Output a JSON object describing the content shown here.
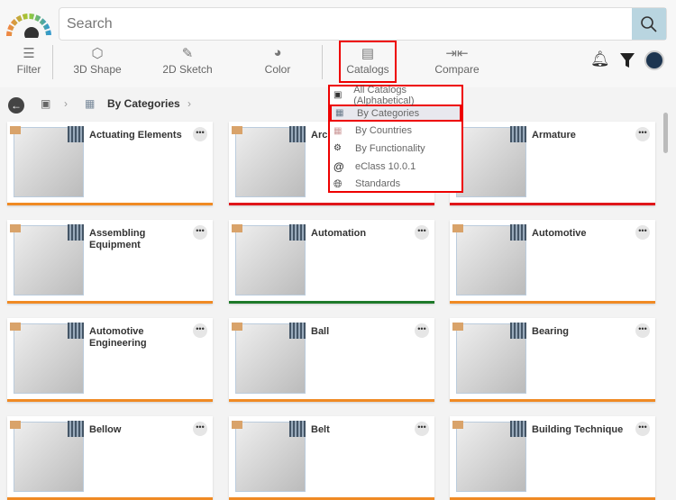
{
  "search": {
    "placeholder": "Search"
  },
  "toolbar": [
    {
      "label": "Filter",
      "icon": "sliders-icon"
    },
    {
      "label": "3D Shape",
      "icon": "cube-icon"
    },
    {
      "label": "2D Sketch",
      "icon": "pencil-icon"
    },
    {
      "label": "Color",
      "icon": "palette-icon"
    },
    {
      "label": "Catalogs",
      "icon": "catalog-icon"
    },
    {
      "label": "Compare",
      "icon": "compare-icon"
    }
  ],
  "breadcrumb": {
    "current": "By Categories"
  },
  "catalogs_menu": [
    "All Catalogs (Alphabetical)",
    "By Categories",
    "By Countries",
    "By Functionality",
    "eClass 10.0.1",
    "Standards"
  ],
  "selected_menu_item": "By Categories",
  "cards": [
    {
      "title": "Actuating Elements",
      "color": "#f08a24"
    },
    {
      "title": "Arch",
      "color": "#e0161a"
    },
    {
      "title": "Armature",
      "color": "#e0161a"
    },
    {
      "title": "Assembling Equipment",
      "color": "#f08a24"
    },
    {
      "title": "Automation",
      "color": "#1e7a2a"
    },
    {
      "title": "Automotive",
      "color": "#f08a24"
    },
    {
      "title": "Automotive Engineering",
      "color": "#f08a24"
    },
    {
      "title": "Ball",
      "color": "#f08a24"
    },
    {
      "title": "Bearing",
      "color": "#f08a24"
    },
    {
      "title": "Bellow",
      "color": "#f08a24"
    },
    {
      "title": "Belt",
      "color": "#f08a24"
    },
    {
      "title": "Building Technique",
      "color": "#f08a24"
    }
  ],
  "more_label": "•••"
}
